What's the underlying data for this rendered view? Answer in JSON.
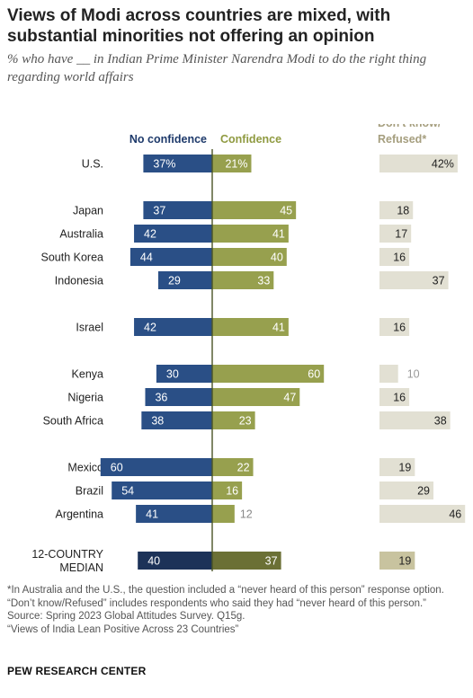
{
  "header": {
    "title": "Views of Modi across countries are mixed, with substantial minorities not offering an opinion",
    "subtitle": "% who have __ in Indian Prime Minister Narendra Modi to do the right thing regarding world affairs"
  },
  "chart_data": {
    "type": "bar",
    "orientation": "diverging-horizontal",
    "series_headers": {
      "no_confidence": "No confidence",
      "confidence": "Confidence",
      "dk_line1": "Don't know/",
      "dk_line2": "Refused*"
    },
    "categories": [
      "U.S.",
      "Japan",
      "Australia",
      "South Korea",
      "Indonesia",
      "Israel",
      "Kenya",
      "Nigeria",
      "South Africa",
      "Mexico",
      "Brazil",
      "Argentina",
      "12-COUNTRY MEDIAN"
    ],
    "category_lines": [
      [
        "U.S."
      ],
      [
        "Japan"
      ],
      [
        "Australia"
      ],
      [
        "South Korea"
      ],
      [
        "Indonesia"
      ],
      [
        "Israel"
      ],
      [
        "Kenya"
      ],
      [
        "Nigeria"
      ],
      [
        "South Africa"
      ],
      [
        "Mexico"
      ],
      [
        "Brazil"
      ],
      [
        "Argentina"
      ],
      [
        "12-COUNTRY",
        "MEDIAN"
      ]
    ],
    "groups": [
      0,
      1,
      1,
      1,
      1,
      2,
      3,
      3,
      3,
      4,
      4,
      4,
      5
    ],
    "series": [
      {
        "name": "No confidence",
        "values": [
          37,
          37,
          42,
          44,
          29,
          42,
          30,
          36,
          38,
          60,
          54,
          41,
          40
        ]
      },
      {
        "name": "Confidence",
        "values": [
          21,
          45,
          41,
          40,
          33,
          41,
          60,
          47,
          23,
          22,
          16,
          12,
          37
        ]
      },
      {
        "name": "Don't know/Refused*",
        "values": [
          42,
          18,
          17,
          16,
          37,
          16,
          10,
          16,
          38,
          19,
          29,
          46,
          19
        ]
      }
    ],
    "value_labels": {
      "no_confidence": [
        "37%",
        "37",
        "42",
        "44",
        "29",
        "42",
        "30",
        "36",
        "38",
        "60",
        "54",
        "41",
        "40"
      ],
      "confidence": [
        "21%",
        "45",
        "41",
        "40",
        "33",
        "41",
        "60",
        "47",
        "23",
        "22",
        "16",
        "12",
        "37"
      ],
      "dont_know": [
        "42%",
        "18",
        "17",
        "16",
        "37",
        "16",
        "10",
        "16",
        "38",
        "19",
        "29",
        "46",
        "19"
      ]
    },
    "colors": {
      "no_confidence": "#2a4f86",
      "confidence": "#97a04e",
      "dont_know": "#e2e0d3",
      "median_no_confidence": "#1c3258",
      "median_confidence": "#6b7035",
      "median_dont_know": "#c8c39f",
      "no_confidence_header": "#1e3a6b",
      "confidence_header": "#8f9a40",
      "dont_know_header": "#a59e7e"
    }
  },
  "footnotes": {
    "note": "*In Australia and the U.S., the question included a “never heard of this person” response option. “Don’t know/Refused” includes respondents who said they had “never heard of this person.”",
    "source": "Source: Spring 2023 Global Attitudes Survey. Q15g.",
    "report": "“Views of India Lean Positive Across 23 Countries”"
  },
  "brand": "PEW RESEARCH CENTER"
}
